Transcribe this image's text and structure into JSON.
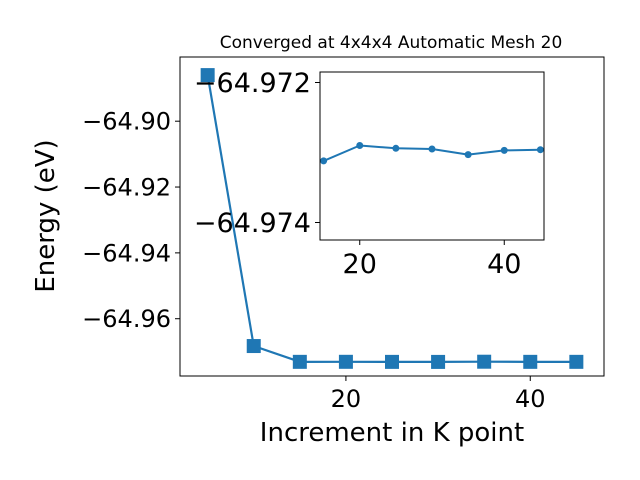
{
  "chart_data": [
    {
      "type": "line",
      "title": "Converged at 4x4x4 Automatic Mesh 20",
      "xlabel": "Increment in K point",
      "ylabel": "Energy (eV)",
      "xlim": [
        2.0,
        48.0
      ],
      "ylim": [
        -64.9774,
        -64.8805
      ],
      "xticks": [
        20,
        40
      ],
      "xtick_labels": [
        "20",
        "40"
      ],
      "yticks": [
        -64.9,
        -64.92,
        -64.94,
        -64.96
      ],
      "ytick_labels": [
        "−64.90",
        "−64.92",
        "−64.94",
        "−64.96"
      ],
      "grid": false,
      "series": [
        {
          "x": [
            5,
            10,
            15,
            20,
            25,
            30,
            35,
            40,
            45
          ],
          "y": [
            -64.886,
            -64.9683,
            -64.9731,
            -64.97309,
            -64.97311,
            -64.97312,
            -64.97306,
            -64.9731,
            -64.9731
          ],
          "marker": "square",
          "color": "#1f77b4"
        }
      ]
    },
    {
      "type": "line",
      "title": "",
      "xlabel": "",
      "ylabel": "",
      "xlim": [
        14.5,
        45.5
      ],
      "ylim": [
        -64.97425,
        -64.97185
      ],
      "xticks": [
        20,
        40
      ],
      "xtick_labels": [
        "20",
        "40"
      ],
      "yticks": [
        -64.974,
        -64.972
      ],
      "ytick_labels": [
        "−64.974",
        "−64.972"
      ],
      "grid": false,
      "series": [
        {
          "x": [
            15,
            20,
            25,
            30,
            35,
            40,
            45
          ],
          "y": [
            -64.97312,
            -64.9729,
            -64.97294,
            -64.97295,
            -64.97303,
            -64.97297,
            -64.97296
          ],
          "marker": "circle",
          "color": "#1f77b4"
        }
      ]
    }
  ]
}
